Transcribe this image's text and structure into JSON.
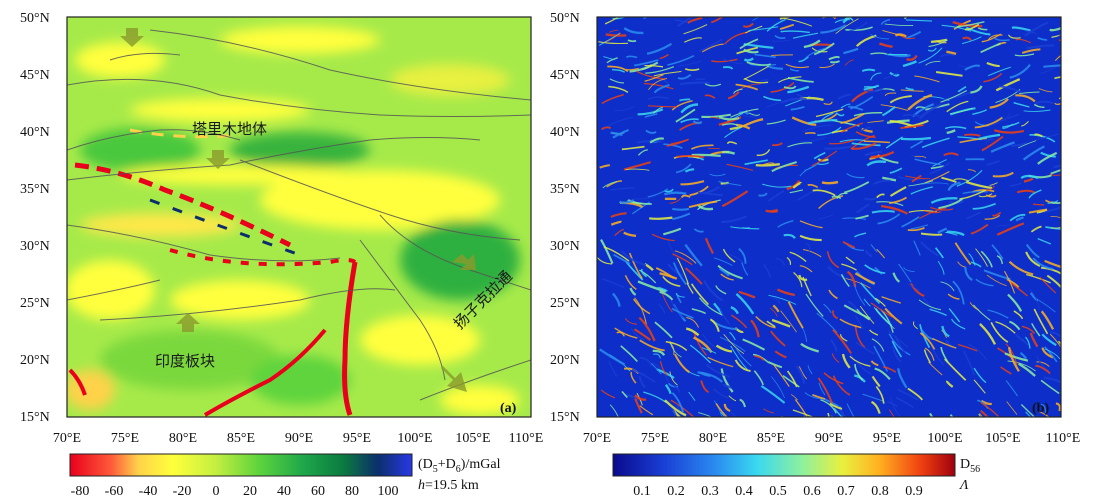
{
  "panel_a": {
    "tag": "(a)",
    "lat_labels": [
      "50°N",
      "45°N",
      "40°N",
      "35°N",
      "30°N",
      "25°N",
      "20°N",
      "15°N"
    ],
    "lon_labels": [
      "70°E",
      "75°E",
      "80°E",
      "85°E",
      "90°E",
      "95°E",
      "100°E",
      "105°E",
      "110°E"
    ],
    "regions": {
      "tarim": "塔里木地体",
      "india": "印度板块",
      "yangtze": "扬子克拉通"
    },
    "colorbar": {
      "title": "(D5+D6)/mGal",
      "title_main": "(D",
      "title_sub1": "5",
      "title_mid": "+D",
      "title_sub2": "6",
      "title_tail": ")/mGal",
      "depth_var": "h",
      "depth_value": "=19.5 km",
      "ticks": [
        "-80",
        "-60",
        "-40",
        "-20",
        "0",
        "20",
        "40",
        "60",
        "80",
        "100"
      ],
      "colors": [
        "#e8001c",
        "#ff6a3a",
        "#ffd24a",
        "#ffff3c",
        "#c8f040",
        "#5fd43c",
        "#1fa84a",
        "#0b7a40",
        "#0b2f6b",
        "#2838e8"
      ]
    }
  },
  "panel_b": {
    "tag": "(b)",
    "lat_labels": [
      "50°N",
      "45°N",
      "40°N",
      "35°N",
      "30°N",
      "25°N",
      "20°N",
      "15°N"
    ],
    "lon_labels": [
      "70°E",
      "75°E",
      "80°E",
      "85°E",
      "90°E",
      "95°E",
      "100°E",
      "105°E",
      "110°E"
    ],
    "colorbar": {
      "title_main": "D",
      "title_sub": "56",
      "var": "Λ",
      "ticks": [
        "0.1",
        "0.2",
        "0.3",
        "0.4",
        "0.5",
        "0.6",
        "0.7",
        "0.8",
        "0.9"
      ],
      "colors": [
        "#0a0a8c",
        "#1a3fd6",
        "#2a8cf0",
        "#3ad8f0",
        "#8cf0a0",
        "#e8f040",
        "#ffb020",
        "#f04010",
        "#a00010"
      ]
    }
  }
}
